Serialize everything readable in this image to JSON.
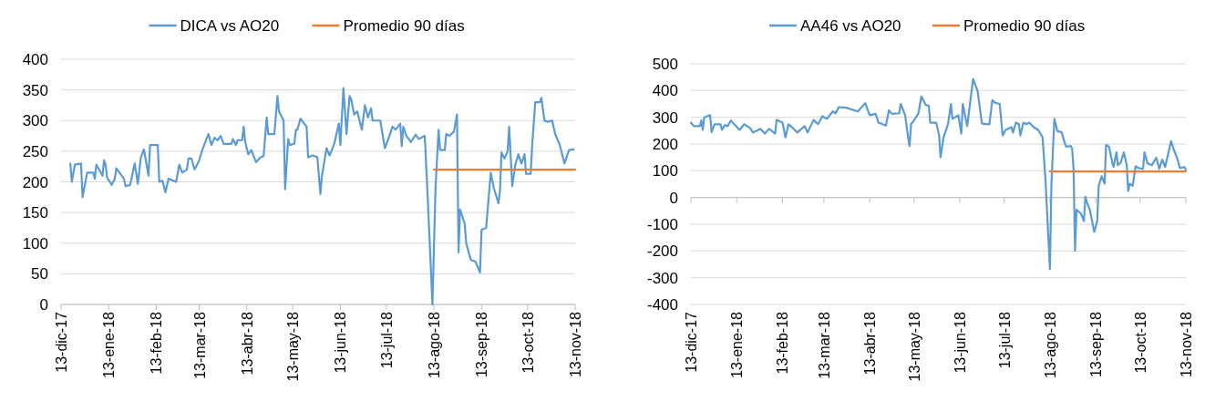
{
  "chart_data": [
    {
      "type": "line",
      "legend": "top",
      "grid": "y",
      "xlim": [
        "2017-12-13",
        "2018-11-13"
      ],
      "ylim": [
        0,
        400
      ],
      "yticks": [
        0,
        50,
        100,
        150,
        200,
        250,
        300,
        350,
        400
      ],
      "xticks": [
        {
          "value": "2017-12-13",
          "label": "13-dic-17"
        },
        {
          "value": "2018-01-13",
          "label": "13-ene-18"
        },
        {
          "value": "2018-02-13",
          "label": "13-feb-18"
        },
        {
          "value": "2018-03-13",
          "label": "13-mar-18"
        },
        {
          "value": "2018-04-13",
          "label": "13-abr-18"
        },
        {
          "value": "2018-05-13",
          "label": "13-may-18"
        },
        {
          "value": "2018-06-13",
          "label": "13-jun-18"
        },
        {
          "value": "2018-07-13",
          "label": "13-jul-18"
        },
        {
          "value": "2018-08-13",
          "label": "13-ago-18"
        },
        {
          "value": "2018-09-13",
          "label": "13-sep-18"
        },
        {
          "value": "2018-10-13",
          "label": "13-oct-18"
        },
        {
          "value": "2018-11-13",
          "label": "13-nov-18"
        }
      ],
      "series": [
        {
          "name": "DICA vs AO20",
          "color": "#5b9bd5",
          "x": [
            "2017-12-19",
            "2017-12-20",
            "2017-12-22",
            "2017-12-26",
            "2017-12-27",
            "2017-12-30",
            "2018-01-03",
            "2018-01-04",
            "2018-01-05",
            "2018-01-09",
            "2018-01-10",
            "2018-01-11",
            "2018-01-12",
            "2018-01-15",
            "2018-01-17",
            "2018-01-18",
            "2018-01-23",
            "2018-01-24",
            "2018-01-27",
            "2018-01-30",
            "2018-02-01",
            "2018-02-03",
            "2018-02-05",
            "2018-02-08",
            "2018-02-09",
            "2018-02-14",
            "2018-02-15",
            "2018-02-17",
            "2018-02-19",
            "2018-02-21",
            "2018-02-26",
            "2018-02-28",
            "2018-03-02",
            "2018-03-05",
            "2018-03-06",
            "2018-03-08",
            "2018-03-10",
            "2018-03-13",
            "2018-03-15",
            "2018-03-19",
            "2018-03-21",
            "2018-03-23",
            "2018-03-25",
            "2018-03-27",
            "2018-03-29",
            "2018-04-03",
            "2018-04-04",
            "2018-04-06",
            "2018-04-07",
            "2018-04-10",
            "2018-04-11",
            "2018-04-12",
            "2018-04-14",
            "2018-04-16",
            "2018-04-19",
            "2018-04-22",
            "2018-04-24",
            "2018-04-26",
            "2018-04-27",
            "2018-05-01",
            "2018-05-03",
            "2018-05-04",
            "2018-05-07",
            "2018-05-08",
            "2018-05-10",
            "2018-05-11",
            "2018-05-14",
            "2018-05-15",
            "2018-05-16",
            "2018-05-18",
            "2018-05-22",
            "2018-05-23",
            "2018-05-26",
            "2018-05-29",
            "2018-05-31",
            "2018-06-01",
            "2018-06-04",
            "2018-06-06",
            "2018-06-09",
            "2018-06-12",
            "2018-06-13",
            "2018-06-15",
            "2018-06-17",
            "2018-06-19",
            "2018-06-20",
            "2018-06-22",
            "2018-06-24",
            "2018-06-27",
            "2018-06-29",
            "2018-07-01",
            "2018-07-03",
            "2018-07-04",
            "2018-07-09",
            "2018-07-12",
            "2018-07-14",
            "2018-07-17",
            "2018-07-19",
            "2018-07-22",
            "2018-07-23",
            "2018-07-24",
            "2018-07-26",
            "2018-07-29",
            "2018-08-01",
            "2018-08-03",
            "2018-08-07",
            "2018-08-09",
            "2018-08-12",
            "2018-08-14",
            "2018-08-16",
            "2018-08-17",
            "2018-08-20",
            "2018-08-21",
            "2018-08-23",
            "2018-08-26",
            "2018-08-28",
            "2018-08-29",
            "2018-08-30",
            "2018-09-02",
            "2018-09-03",
            "2018-09-06",
            "2018-09-09",
            "2018-09-12",
            "2018-09-13",
            "2018-09-16",
            "2018-09-19",
            "2018-09-21",
            "2018-09-24",
            "2018-09-25",
            "2018-09-26",
            "2018-09-28",
            "2018-09-30",
            "2018-10-01",
            "2018-10-03",
            "2018-10-05",
            "2018-10-07",
            "2018-10-09",
            "2018-10-11",
            "2018-10-12",
            "2018-10-15",
            "2018-10-16",
            "2018-10-18",
            "2018-10-21",
            "2018-10-22",
            "2018-10-24",
            "2018-10-26",
            "2018-10-29",
            "2018-10-31",
            "2018-11-03",
            "2018-11-06",
            "2018-11-09",
            "2018-11-12"
          ],
          "values": [
            230,
            200,
            228,
            230,
            175,
            215,
            215,
            205,
            228,
            210,
            235,
            228,
            207,
            195,
            205,
            222,
            205,
            193,
            195,
            230,
            197,
            240,
            253,
            210,
            260,
            260,
            200,
            202,
            183,
            205,
            200,
            228,
            215,
            220,
            238,
            238,
            220,
            235,
            252,
            278,
            260,
            272,
            268,
            275,
            262,
            262,
            270,
            260,
            268,
            268,
            290,
            265,
            245,
            252,
            232,
            240,
            242,
            305,
            278,
            278,
            340,
            315,
            300,
            188,
            270,
            260,
            262,
            285,
            285,
            303,
            290,
            240,
            243,
            240,
            180,
            210,
            255,
            243,
            262,
            295,
            260,
            353,
            278,
            340,
            335,
            310,
            315,
            285,
            325,
            305,
            320,
            300,
            300,
            255,
            268,
            290,
            285,
            295,
            258,
            290,
            275,
            265,
            277,
            270,
            275,
            170,
            0,
            190,
            285,
            252,
            252,
            278,
            275,
            282,
            310,
            85,
            155,
            132,
            100,
            73,
            70,
            52,
            122,
            125,
            215,
            190,
            165,
            185,
            248,
            238,
            250,
            290,
            193,
            228,
            245,
            230,
            245,
            213,
            213,
            260,
            330,
            330,
            337,
            300,
            298,
            300,
            278,
            260,
            230,
            252,
            253
          ]
        },
        {
          "name": "Promedio 90 días",
          "color": "#ed7d31",
          "x": [
            "2018-08-13",
            "2018-11-13"
          ],
          "values": [
            220,
            220
          ]
        }
      ]
    },
    {
      "type": "line",
      "legend": "top",
      "grid": "y",
      "xlim": [
        "2017-12-13",
        "2018-11-13"
      ],
      "ylim": [
        -400,
        500
      ],
      "yticks": [
        -400,
        -300,
        -200,
        -100,
        0,
        100,
        200,
        300,
        400,
        500
      ],
      "xticks": [
        {
          "value": "2017-12-13",
          "label": "13-dic-17"
        },
        {
          "value": "2018-01-13",
          "label": "13-ene-18"
        },
        {
          "value": "2018-02-13",
          "label": "13-feb-18"
        },
        {
          "value": "2018-03-13",
          "label": "13-mar-18"
        },
        {
          "value": "2018-04-13",
          "label": "13-abr-18"
        },
        {
          "value": "2018-05-13",
          "label": "13-may-18"
        },
        {
          "value": "2018-06-13",
          "label": "13-jun-18"
        },
        {
          "value": "2018-07-13",
          "label": "13-jul-18"
        },
        {
          "value": "2018-08-13",
          "label": "13-ago-18"
        },
        {
          "value": "2018-09-13",
          "label": "13-sep-18"
        },
        {
          "value": "2018-10-13",
          "label": "13-oct-18"
        },
        {
          "value": "2018-11-13",
          "label": "13-nov-18"
        }
      ],
      "series": [
        {
          "name": "AA46 vs AO20",
          "color": "#5b9bd5",
          "x": [
            "2017-12-13",
            "2017-12-15",
            "2017-12-19",
            "2017-12-20",
            "2017-12-21",
            "2017-12-22",
            "2017-12-26",
            "2017-12-27",
            "2017-12-29",
            "2018-01-02",
            "2018-01-03",
            "2018-01-05",
            "2018-01-07",
            "2018-01-09",
            "2018-01-15",
            "2018-01-18",
            "2018-01-22",
            "2018-01-24",
            "2018-01-29",
            "2018-02-01",
            "2018-02-04",
            "2018-02-08",
            "2018-02-09",
            "2018-02-13",
            "2018-02-15",
            "2018-02-17",
            "2018-02-20",
            "2018-02-23",
            "2018-02-28",
            "2018-03-02",
            "2018-03-06",
            "2018-03-09",
            "2018-03-12",
            "2018-03-15",
            "2018-03-19",
            "2018-03-21",
            "2018-03-23",
            "2018-03-28",
            "2018-04-05",
            "2018-04-10",
            "2018-04-13",
            "2018-04-17",
            "2018-04-19",
            "2018-04-24",
            "2018-04-26",
            "2018-04-28",
            "2018-05-03",
            "2018-05-04",
            "2018-05-07",
            "2018-05-09",
            "2018-05-10",
            "2018-05-11",
            "2018-05-13",
            "2018-05-16",
            "2018-05-18",
            "2018-05-21",
            "2018-05-23",
            "2018-05-24",
            "2018-05-28",
            "2018-05-30",
            "2018-05-31",
            "2018-06-02",
            "2018-06-05",
            "2018-06-07",
            "2018-06-08",
            "2018-06-12",
            "2018-06-14",
            "2018-06-15",
            "2018-06-18",
            "2018-06-22",
            "2018-06-25",
            "2018-06-28",
            "2018-07-03",
            "2018-07-05",
            "2018-07-07",
            "2018-07-10",
            "2018-07-12",
            "2018-07-14",
            "2018-07-18",
            "2018-07-19",
            "2018-07-21",
            "2018-07-23",
            "2018-07-24",
            "2018-07-26",
            "2018-07-28",
            "2018-07-30",
            "2018-08-02",
            "2018-08-05",
            "2018-08-08",
            "2018-08-10",
            "2018-08-13",
            "2018-08-14",
            "2018-08-16",
            "2018-08-18",
            "2018-08-21",
            "2018-08-23",
            "2018-08-24",
            "2018-08-27",
            "2018-08-28",
            "2018-08-29",
            "2018-08-30",
            "2018-08-31",
            "2018-09-03",
            "2018-09-05",
            "2018-09-06",
            "2018-09-07",
            "2018-09-09",
            "2018-09-12",
            "2018-09-14",
            "2018-09-15",
            "2018-09-17",
            "2018-09-19",
            "2018-09-20",
            "2018-09-22",
            "2018-09-24",
            "2018-09-25",
            "2018-09-27",
            "2018-09-28",
            "2018-09-30",
            "2018-10-02",
            "2018-10-04",
            "2018-10-05",
            "2018-10-06",
            "2018-10-08",
            "2018-10-10",
            "2018-10-12",
            "2018-10-15",
            "2018-10-16",
            "2018-10-18",
            "2018-10-21",
            "2018-10-24",
            "2018-10-26",
            "2018-10-28",
            "2018-10-30",
            "2018-11-03",
            "2018-11-05",
            "2018-11-07",
            "2018-11-09",
            "2018-11-12",
            "2018-11-13"
          ],
          "values": [
            280,
            267,
            267,
            288,
            253,
            300,
            308,
            245,
            274,
            274,
            253,
            271,
            267,
            288,
            253,
            274,
            260,
            243,
            257,
            239,
            257,
            239,
            290,
            280,
            225,
            274,
            260,
            243,
            267,
            243,
            290,
            274,
            304,
            294,
            322,
            315,
            338,
            336,
            322,
            353,
            308,
            313,
            280,
            269,
            326,
            313,
            315,
            350,
            308,
            225,
            193,
            274,
            288,
            315,
            378,
            346,
            343,
            280,
            280,
            232,
            151,
            225,
            274,
            350,
            294,
            308,
            239,
            350,
            267,
            443,
            399,
            276,
            274,
            364,
            354,
            350,
            232,
            253,
            263,
            243,
            280,
            274,
            232,
            280,
            274,
            280,
            263,
            253,
            225,
            65,
            -268,
            51,
            294,
            249,
            243,
            204,
            190,
            193,
            183,
            107,
            -199,
            -46,
            -60,
            -88,
            3,
            -18,
            -46,
            -129,
            -88,
            44,
            79,
            51,
            197,
            190,
            135,
            114,
            169,
            121,
            132,
            169,
            121,
            24,
            51,
            44,
            117,
            110,
            107,
            169,
            128,
            121,
            149,
            107,
            142,
            114,
            211,
            176,
            149,
            110,
            114,
            104
          ]
        },
        {
          "name": "Promedio 90 días",
          "color": "#ed7d31",
          "x": [
            "2018-08-13",
            "2018-11-13"
          ],
          "values": [
            97,
            97
          ]
        }
      ]
    }
  ]
}
